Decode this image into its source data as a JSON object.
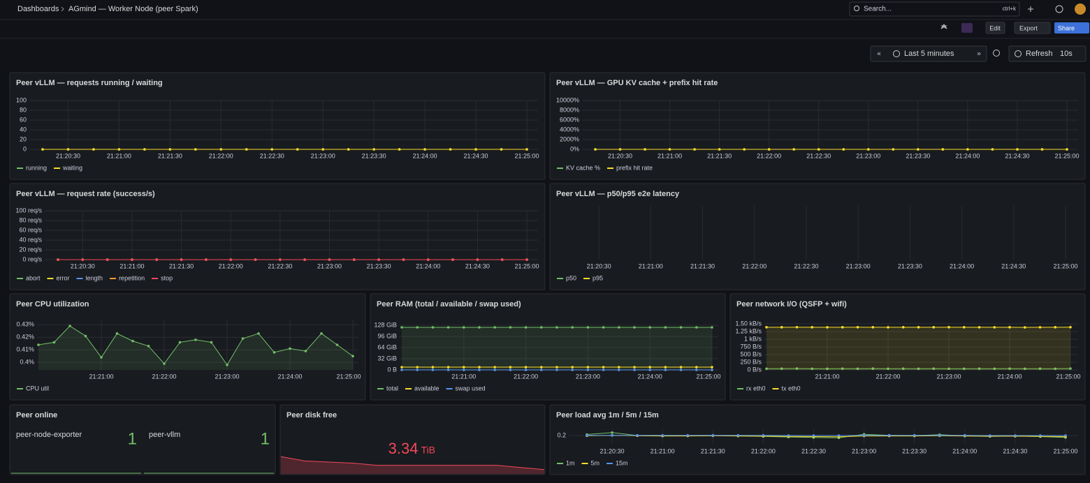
{
  "header": {
    "breadcrumb": [
      "Dashboards",
      "AGmind — Worker Node (peer Spark)"
    ],
    "search": "Search...",
    "shortcut": "ctrl+k"
  },
  "toolbar": {
    "edit": "Edit",
    "export": "Export",
    "share": "Share",
    "time_range": "Last 5 minutes",
    "refresh": "Refresh",
    "interval": "10s"
  },
  "panels": [
    {
      "kind": "timeseries",
      "title": "Peer vLLM — requests running / waiting",
      "ylim": [
        0,
        100
      ],
      "yticks": [
        0,
        20,
        40,
        60,
        80,
        100
      ],
      "xlim": [
        "21:20:15",
        "21:25:00"
      ],
      "xticks": [
        "21:20:30",
        "21:21:00",
        "21:21:30",
        "21:22:00",
        "21:22:30",
        "21:23:00",
        "21:23:30",
        "21:24:00",
        "21:24:30",
        "21:25:00"
      ],
      "x": [
        "21:20:15",
        "21:20:30",
        "21:20:45",
        "21:21:00",
        "21:21:15",
        "21:21:30",
        "21:21:45",
        "21:22:00",
        "21:22:15",
        "21:22:30",
        "21:22:45",
        "21:23:00",
        "21:23:15",
        "21:23:30",
        "21:23:45",
        "21:24:00",
        "21:24:15",
        "21:24:30",
        "21:24:45",
        "21:25:00"
      ],
      "series": [
        {
          "name": "running",
          "color": "#73bf69",
          "values": [
            0,
            0,
            0,
            0,
            0,
            0,
            0,
            0,
            0,
            0,
            0,
            0,
            0,
            0,
            0,
            0,
            0,
            0,
            0,
            0
          ]
        },
        {
          "name": "waiting",
          "color": "#fade2a",
          "values": [
            0,
            0,
            0,
            0,
            0,
            0,
            0,
            0,
            0,
            0,
            0,
            0,
            0,
            0,
            0,
            0,
            0,
            0,
            0,
            0
          ]
        }
      ]
    },
    {
      "kind": "timeseries",
      "title": "Peer vLLM — GPU KV cache + prefix hit rate",
      "ylim": [
        0,
        10000
      ],
      "yticks": [
        {
          "value": 0,
          "label": "0%"
        },
        {
          "value": 2000,
          "label": "2000%"
        },
        {
          "value": 4000,
          "label": "4000%"
        },
        {
          "value": 6000,
          "label": "6000%"
        },
        {
          "value": 8000,
          "label": "8000%"
        },
        {
          "value": 10000,
          "label": "10000%"
        }
      ],
      "xlim": [
        "21:20:15",
        "21:25:00"
      ],
      "xticks": [
        "21:20:30",
        "21:21:00",
        "21:21:30",
        "21:22:00",
        "21:22:30",
        "21:23:00",
        "21:23:30",
        "21:24:00",
        "21:24:30",
        "21:25:00"
      ],
      "x": [
        "21:20:15",
        "21:20:30",
        "21:20:45",
        "21:21:00",
        "21:21:15",
        "21:21:30",
        "21:21:45",
        "21:22:00",
        "21:22:15",
        "21:22:30",
        "21:22:45",
        "21:23:00",
        "21:23:15",
        "21:23:30",
        "21:23:45",
        "21:24:00",
        "21:24:15",
        "21:24:30",
        "21:24:45",
        "21:25:00"
      ],
      "series": [
        {
          "name": "KV cache %",
          "color": "#73bf69",
          "values": [
            0,
            0,
            0,
            0,
            0,
            0,
            0,
            0,
            0,
            0,
            0,
            0,
            0,
            0,
            0,
            0,
            0,
            0,
            0,
            0
          ]
        },
        {
          "name": "prefix hit rate",
          "color": "#fade2a",
          "values": [
            0,
            0,
            0,
            0,
            0,
            0,
            0,
            0,
            0,
            0,
            0,
            0,
            0,
            0,
            0,
            0,
            0,
            0,
            0,
            0
          ]
        }
      ]
    },
    {
      "kind": "timeseries",
      "title": "Peer vLLM — request rate (success/s)",
      "ylim": [
        0,
        100
      ],
      "yticks": [
        {
          "value": 0,
          "label": "0 req/s"
        },
        {
          "value": 20,
          "label": "20 req/s"
        },
        {
          "value": 40,
          "label": "40 req/s"
        },
        {
          "value": 60,
          "label": "60 req/s"
        },
        {
          "value": 80,
          "label": "80 req/s"
        },
        {
          "value": 100,
          "label": "100 req/s"
        }
      ],
      "xlim": [
        "21:20:15",
        "21:25:00"
      ],
      "xticks": [
        "21:20:30",
        "21:21:00",
        "21:21:30",
        "21:22:00",
        "21:22:30",
        "21:23:00",
        "21:23:30",
        "21:24:00",
        "21:24:30",
        "21:25:00"
      ],
      "x": [
        "21:20:15",
        "21:20:30",
        "21:20:45",
        "21:21:00",
        "21:21:15",
        "21:21:30",
        "21:21:45",
        "21:22:00",
        "21:22:15",
        "21:22:30",
        "21:22:45",
        "21:23:00",
        "21:23:15",
        "21:23:30",
        "21:23:45",
        "21:24:00",
        "21:24:15",
        "21:24:30",
        "21:24:45",
        "21:25:00"
      ],
      "series": [
        {
          "name": "abort",
          "color": "#73bf69",
          "values": [
            0,
            0,
            0,
            0,
            0,
            0,
            0,
            0,
            0,
            0,
            0,
            0,
            0,
            0,
            0,
            0,
            0,
            0,
            0,
            0
          ]
        },
        {
          "name": "error",
          "color": "#fade2a",
          "values": [
            0,
            0,
            0,
            0,
            0,
            0,
            0,
            0,
            0,
            0,
            0,
            0,
            0,
            0,
            0,
            0,
            0,
            0,
            0,
            0
          ]
        },
        {
          "name": "length",
          "color": "#5794f2",
          "values": [
            0,
            0,
            0,
            0,
            0,
            0,
            0,
            0,
            0,
            0,
            0,
            0,
            0,
            0,
            0,
            0,
            0,
            0,
            0,
            0
          ]
        },
        {
          "name": "repetition",
          "color": "#ff9830",
          "values": [
            0,
            0,
            0,
            0,
            0,
            0,
            0,
            0,
            0,
            0,
            0,
            0,
            0,
            0,
            0,
            0,
            0,
            0,
            0,
            0
          ]
        },
        {
          "name": "stop",
          "color": "#f2495c",
          "values": [
            0,
            0,
            0,
            0,
            0,
            0,
            0,
            0,
            0,
            0,
            0,
            0,
            0,
            0,
            0,
            0,
            0,
            0,
            0,
            0
          ]
        }
      ]
    },
    {
      "kind": "timeseries",
      "title": "Peer vLLM — p50/p95 e2e latency",
      "xlim": [
        "21:20:15",
        "21:25:00"
      ],
      "xticks": [
        "21:20:30",
        "21:21:00",
        "21:21:30",
        "21:22:00",
        "21:22:30",
        "21:23:00",
        "21:23:30",
        "21:24:00",
        "21:24:30",
        "21:25:00"
      ],
      "series": [
        {
          "name": "p50",
          "color": "#73bf69"
        },
        {
          "name": "p95",
          "color": "#fade2a"
        }
      ]
    },
    {
      "kind": "timeseries",
      "title": "Peer CPU utilization",
      "ylim": [
        0.394,
        0.434
      ],
      "yticks": [
        {
          "value": 0.4,
          "label": "0.4%"
        },
        {
          "value": 0.41,
          "label": "0.41%"
        },
        {
          "value": 0.42,
          "label": "0.42%"
        },
        {
          "value": 0.43,
          "label": "0.43%"
        }
      ],
      "xlim": [
        "21:20:00",
        "21:25:00"
      ],
      "xticks": [
        "21:21:00",
        "21:22:00",
        "21:23:00",
        "21:24:00",
        "21:25:00"
      ],
      "x": [
        "21:20:00",
        "21:20:15",
        "21:20:30",
        "21:20:45",
        "21:21:00",
        "21:21:15",
        "21:21:30",
        "21:21:45",
        "21:22:00",
        "21:22:15",
        "21:22:30",
        "21:22:45",
        "21:23:00",
        "21:23:15",
        "21:23:30",
        "21:23:45",
        "21:24:00",
        "21:24:15",
        "21:24:30",
        "21:24:45",
        "21:25:00"
      ],
      "series": [
        {
          "name": "CPU util",
          "color": "#73bf69",
          "fill": true,
          "values": [
            0.414,
            0.416,
            0.429,
            0.421,
            0.404,
            0.423,
            0.417,
            0.413,
            0.399,
            0.416,
            0.418,
            0.416,
            0.398,
            0.419,
            0.423,
            0.408,
            0.411,
            0.409,
            0.423,
            0.414,
            0.405
          ]
        }
      ]
    },
    {
      "kind": "timeseries",
      "title": "Peer RAM (total / available / swap used)",
      "ylim": [
        0,
        128
      ],
      "yticks": [
        {
          "value": 0,
          "label": "0 B"
        },
        {
          "value": 32,
          "label": "32 GiB"
        },
        {
          "value": 64,
          "label": "64 GiB"
        },
        {
          "value": 96,
          "label": "96 GiB"
        },
        {
          "value": 128,
          "label": "128 GiB"
        }
      ],
      "xlim": [
        "21:20:00",
        "21:25:00"
      ],
      "xticks": [
        "21:21:00",
        "21:22:00",
        "21:23:00",
        "21:24:00",
        "21:25:00"
      ],
      "x": [
        "21:20:00",
        "21:20:15",
        "21:20:30",
        "21:20:45",
        "21:21:00",
        "21:21:15",
        "21:21:30",
        "21:21:45",
        "21:22:00",
        "21:22:15",
        "21:22:30",
        "21:22:45",
        "21:23:00",
        "21:23:15",
        "21:23:30",
        "21:23:45",
        "21:24:00",
        "21:24:15",
        "21:24:30",
        "21:24:45",
        "21:25:00"
      ],
      "series": [
        {
          "name": "total",
          "color": "#73bf69",
          "fill": true,
          "values": [
            122,
            122,
            122,
            122,
            122,
            122,
            122,
            122,
            122,
            122,
            122,
            122,
            122,
            122,
            122,
            122,
            122,
            122,
            122,
            122,
            122
          ]
        },
        {
          "name": "available",
          "color": "#fade2a",
          "values": [
            8,
            8,
            8,
            8,
            8,
            8,
            8,
            8,
            8,
            8,
            8,
            8,
            8,
            8,
            8,
            8,
            8,
            8,
            8,
            8,
            8
          ]
        },
        {
          "name": "swap used",
          "color": "#5794f2",
          "values": [
            0,
            0,
            0,
            0,
            0,
            0,
            0,
            0,
            0,
            0,
            0,
            0,
            0,
            0,
            0,
            0,
            0,
            0,
            0,
            0,
            0
          ]
        }
      ]
    },
    {
      "kind": "timeseries",
      "title": "Peer network I/O (QSFP + wifi)",
      "ylim": [
        0,
        1500
      ],
      "yticks": [
        {
          "value": 0,
          "label": "0 B/s"
        },
        {
          "value": 250,
          "label": "250 B/s"
        },
        {
          "value": 500,
          "label": "500 B/s"
        },
        {
          "value": 750,
          "label": "750 B/s"
        },
        {
          "value": 1000,
          "label": "1 kB/s"
        },
        {
          "value": 1250,
          "label": "1.25 kB/s"
        },
        {
          "value": 1500,
          "label": "1.50 kB/s"
        }
      ],
      "xlim": [
        "21:20:00",
        "21:25:00"
      ],
      "xticks": [
        "21:21:00",
        "21:22:00",
        "21:23:00",
        "21:24:00",
        "21:25:00"
      ],
      "x": [
        "21:20:00",
        "21:20:15",
        "21:20:30",
        "21:20:45",
        "21:21:00",
        "21:21:15",
        "21:21:30",
        "21:21:45",
        "21:22:00",
        "21:22:15",
        "21:22:30",
        "21:22:45",
        "21:23:00",
        "21:23:15",
        "21:23:30",
        "21:23:45",
        "21:24:00",
        "21:24:15",
        "21:24:30",
        "21:24:45",
        "21:25:00"
      ],
      "series": [
        {
          "name": "rx eth0",
          "color": "#73bf69",
          "fill": true,
          "values": [
            40,
            42,
            45,
            40,
            38,
            42,
            40,
            44,
            40,
            41,
            40,
            42,
            40,
            39,
            41,
            40,
            42,
            40,
            41,
            40,
            45
          ]
        },
        {
          "name": "tx eth0",
          "color": "#fade2a",
          "fill": true,
          "values": [
            1390,
            1390,
            1392,
            1390,
            1388,
            1390,
            1391,
            1390,
            1389,
            1390,
            1390,
            1390,
            1391,
            1390,
            1388,
            1389,
            1390,
            1385,
            1388,
            1390,
            1392
          ]
        }
      ]
    },
    {
      "kind": "stat",
      "title": "Peer online",
      "color": "#73bf69",
      "items": [
        {
          "name": "peer-node-exporter",
          "value": 1
        },
        {
          "name": "peer-vllm",
          "value": 1
        }
      ]
    },
    {
      "kind": "stat_sparkline",
      "title": "Peer disk free",
      "color": "#f2495c",
      "value": 3.34,
      "unit": "TiB",
      "ylim": [
        3.3,
        3.5
      ],
      "sparkline": [
        3.46,
        3.42,
        3.41,
        3.4,
        3.38,
        3.38,
        3.38,
        3.38,
        3.38,
        3.38,
        3.36,
        3.34
      ]
    },
    {
      "kind": "timeseries",
      "title": "Peer load avg 1m / 5m / 15m",
      "ylim": [
        0.16,
        0.23
      ],
      "yticks": [
        0.2
      ],
      "xlim": [
        "21:20:15",
        "21:25:00"
      ],
      "xticks": [
        "21:20:30",
        "21:21:00",
        "21:21:30",
        "21:22:00",
        "21:22:30",
        "21:23:00",
        "21:23:30",
        "21:24:00",
        "21:24:30",
        "21:25:00"
      ],
      "x": [
        "21:20:15",
        "21:20:30",
        "21:20:45",
        "21:21:00",
        "21:21:15",
        "21:21:30",
        "21:21:45",
        "21:22:00",
        "21:22:15",
        "21:22:30",
        "21:22:45",
        "21:23:00",
        "21:23:15",
        "21:23:30",
        "21:23:45",
        "21:24:00",
        "21:24:15",
        "21:24:30",
        "21:24:45",
        "21:25:00"
      ],
      "series": [
        {
          "name": "1m",
          "color": "#73bf69",
          "values": [
            0.205,
            0.214,
            0.2,
            0.198,
            0.199,
            0.201,
            0.198,
            0.196,
            0.193,
            0.191,
            0.189,
            0.206,
            0.201,
            0.199,
            0.204,
            0.198,
            0.196,
            0.198,
            0.195,
            0.191
          ]
        },
        {
          "name": "5m",
          "color": "#fade2a",
          "values": [
            0.199,
            0.201,
            0.199,
            0.198,
            0.198,
            0.199,
            0.198,
            0.197,
            0.196,
            0.195,
            0.194,
            0.198,
            0.198,
            0.198,
            0.199,
            0.198,
            0.197,
            0.197,
            0.196,
            0.195
          ]
        },
        {
          "name": "15m",
          "color": "#5794f2",
          "values": [
            0.201,
            0.201,
            0.201,
            0.201,
            0.201,
            0.201,
            0.201,
            0.201,
            0.2,
            0.2,
            0.2,
            0.201,
            0.201,
            0.201,
            0.201,
            0.201,
            0.2,
            0.2,
            0.2,
            0.2
          ]
        }
      ]
    }
  ]
}
